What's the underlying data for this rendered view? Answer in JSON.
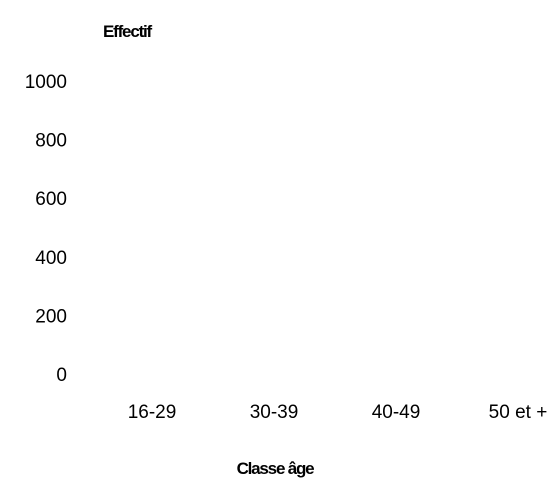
{
  "chart_data": {
    "type": "bar",
    "title": "",
    "ylabel": "Effectif",
    "xlabel": "Classe âge",
    "categories": [
      "16-29",
      "30-39",
      "40-49",
      "50 et +"
    ],
    "series": [
      {
        "values": [
          0,
          0,
          0,
          0
        ]
      }
    ],
    "yticks": [
      "0",
      "200",
      "400",
      "600",
      "800",
      "1000"
    ],
    "ylim": [
      0,
      1000
    ],
    "grid": false,
    "legend": "none"
  }
}
